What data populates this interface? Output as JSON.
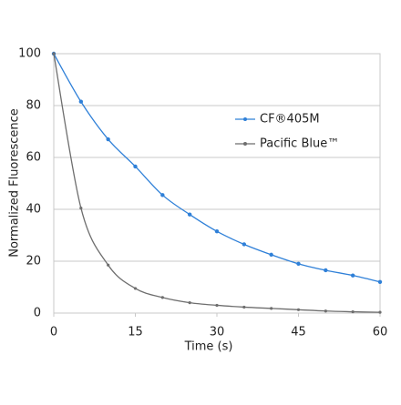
{
  "chart_data": {
    "type": "line",
    "x_label": "Time (s)",
    "y_label": "Normalized Fluorescence",
    "x": [
      0,
      5,
      10,
      15,
      20,
      25,
      30,
      35,
      40,
      45,
      50,
      55,
      60
    ],
    "series": [
      {
        "name": "CF®405M",
        "color": "#2f80d8",
        "values": [
          100,
          81.5,
          67,
          56.5,
          45.5,
          38,
          31.5,
          26.5,
          22.5,
          19,
          16.5,
          14.5,
          12
        ]
      },
      {
        "name": "Pacific Blue™",
        "color": "#6e6e6e",
        "values": [
          100,
          40.5,
          18.5,
          9.5,
          6,
          4,
          3,
          2.3,
          1.8,
          1.3,
          0.8,
          0.5,
          0.3
        ]
      }
    ],
    "xlim": [
      0,
      60
    ],
    "xticks": [
      0,
      15,
      30,
      45,
      60
    ],
    "ylim": [
      0,
      100
    ],
    "yticks": [
      0,
      20,
      40,
      60,
      80,
      100
    ],
    "grid": true
  }
}
